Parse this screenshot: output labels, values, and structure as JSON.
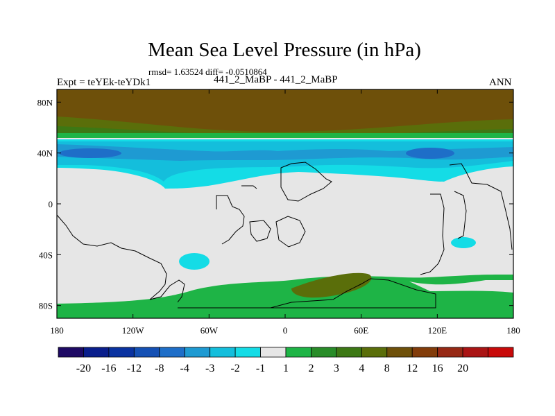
{
  "title": "Mean Sea Level Pressure (in hPa)",
  "stats": "rmsd= 1.63524 diff= -0.0510864",
  "expt": "Expt = teYEk-teYDk1",
  "case_label": "441_2_MaBP - 441_2_MaBP",
  "season": "ANN",
  "chart_data": {
    "type": "heatmap",
    "title": "Mean Sea Level Pressure (in hPa)",
    "x_range": [
      -180,
      180
    ],
    "y_range": [
      -90,
      90
    ],
    "x_ticks": [
      {
        "value": -180,
        "label": "180"
      },
      {
        "value": -120,
        "label": "120W"
      },
      {
        "value": -60,
        "label": "60W"
      },
      {
        "value": 0,
        "label": "0"
      },
      {
        "value": 60,
        "label": "60E"
      },
      {
        "value": 120,
        "label": "120E"
      },
      {
        "value": 180,
        "label": "180"
      }
    ],
    "y_ticks": [
      {
        "value": 80,
        "label": "80N"
      },
      {
        "value": 40,
        "label": "40N"
      },
      {
        "value": 0,
        "label": "0"
      },
      {
        "value": -40,
        "label": "40S"
      },
      {
        "value": -80,
        "label": "80S"
      }
    ],
    "colorbar": {
      "colors": [
        "#1e0a64",
        "#0a1e8c",
        "#0a32a0",
        "#1450b4",
        "#1e6ec8",
        "#1e9ad2",
        "#14bedc",
        "#14dce6",
        "#e6e6e6",
        "#1eb446",
        "#288c28",
        "#3c7814",
        "#5a6e0a",
        "#6e500a",
        "#823c0a",
        "#962814",
        "#aa1414",
        "#c80a0a"
      ],
      "labels": [
        "-20",
        "-16",
        "-12",
        "-8",
        "-4",
        "-3",
        "-2",
        "-1",
        "1",
        "2",
        "3",
        "4",
        "8",
        "12",
        "16",
        "20"
      ]
    }
  }
}
